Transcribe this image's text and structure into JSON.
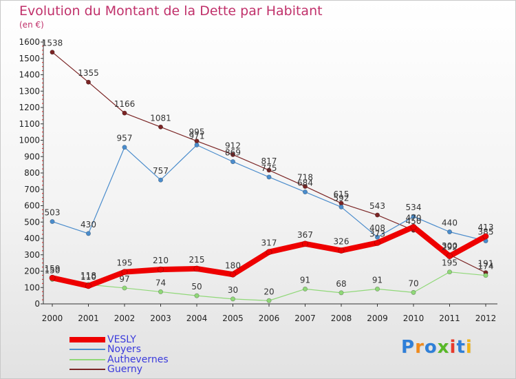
{
  "title": "Evolution du Montant de la Dette par Habitant",
  "subtitle": "(en €)",
  "brand": {
    "text": "Proxiti",
    "colors": [
      "#2f7fd8",
      "#f08a1c",
      "#2f7fd8",
      "#58b828",
      "#e83a2c",
      "#2f7fd8",
      "#f0b418"
    ]
  },
  "chart_data": {
    "type": "line",
    "x": [
      "2000",
      "2001",
      "2002",
      "2003",
      "2004",
      "2005",
      "2006",
      "2007",
      "2008",
      "2009",
      "2010",
      "2011",
      "2012"
    ],
    "ylim": [
      0,
      1600
    ],
    "yticks": [
      "0",
      "100",
      "200",
      "300",
      "400",
      "500",
      "600",
      "700",
      "800",
      "900",
      "1000",
      "1100",
      "1200",
      "1300",
      "1400",
      "1500",
      "1600"
    ],
    "grid": false,
    "legend_position": "bottom-left",
    "series": [
      {
        "name": "Guerny",
        "color": "#7a2424",
        "values": [
          1538,
          1355,
          1166,
          1081,
          995,
          912,
          817,
          718,
          615,
          543,
          450,
          300,
          191
        ]
      },
      {
        "name": "Noyers",
        "color": "#4a8ccc",
        "values": [
          503,
          430,
          957,
          757,
          971,
          869,
          775,
          684,
          592,
          408,
          534,
          440,
          385
        ]
      },
      {
        "name": "Authevernes",
        "color": "#90d878",
        "values": [
          150,
          118,
          97,
          74,
          50,
          30,
          20,
          91,
          68,
          91,
          70,
          195,
          174
        ]
      },
      {
        "name": "VESLY",
        "color": "#ee0000",
        "values": [
          159,
          110,
          195,
          210,
          215,
          180,
          317,
          367,
          326,
          373,
          470,
          292,
          413
        ]
      }
    ],
    "legend": [
      "VESLY",
      "Noyers",
      "Authevernes",
      "Guerny"
    ]
  }
}
